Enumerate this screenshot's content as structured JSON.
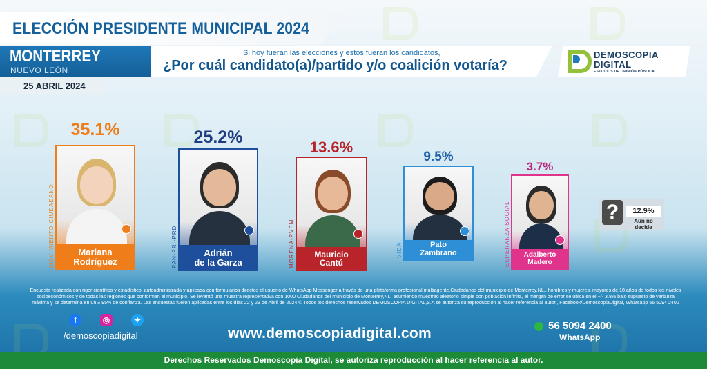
{
  "header": {
    "title": "ELECCIÓN PRESIDENTE MUNICIPAL 2024",
    "city": "MONTERREY",
    "state": "NUEVO LEÓN",
    "date": "25 ABRIL 2024",
    "question_intro": "Si hoy fueran las elecciones y estos fueran los candidatos,",
    "question": "¿Por cuál candidato(a)/partido y/o coalición votaría?"
  },
  "logo": {
    "line1": "DEMOSCOPIA",
    "line2": "DIGITAL",
    "tagline": "ESTUDIOS DE OPINIÓN PÚBLICA"
  },
  "chart_data": {
    "type": "bar",
    "categories": [
      "Mariana Rodríguez",
      "Adrián de la Garza",
      "Mauricio Cantú",
      "Pato Zambrano",
      "Adalberto Madero"
    ],
    "values": [
      35.1,
      25.2,
      13.6,
      9.5,
      3.7
    ],
    "value_labels": [
      "35.1%",
      "25.2%",
      "13.6%",
      "9.5%",
      "3.7%"
    ],
    "undecided": {
      "value": 12.9,
      "label": "12.9%",
      "caption": "Aún no decide"
    }
  },
  "candidates": [
    {
      "name_line1": "Mariana",
      "name_line2": "Rodríguez",
      "party": "MOVIMIENTO CIUDADANO",
      "color": "#ef7d1a",
      "pct_color": "#ef7d1a"
    },
    {
      "name_line1": "Adrián",
      "name_line2": "de la Garza",
      "party": "PAN-PRI-PRD",
      "color": "#1d4f9c",
      "pct_color": "#1d3d80"
    },
    {
      "name_line1": "Mauricio",
      "name_line2": "Cantú",
      "party": "MORENA-PVEM",
      "color": "#b8242a",
      "pct_color": "#b8242a"
    },
    {
      "name_line1": "Pato",
      "name_line2": "Zambrano",
      "party": "VIDA",
      "color": "#2f8fd6",
      "pct_color": "#1d5fa8"
    },
    {
      "name_line1": "Adalberto",
      "name_line2": "Madero",
      "party": "ESPERANZA SOCIAL",
      "color": "#e0338b",
      "pct_color": "#b8247a"
    }
  ],
  "footer": {
    "disclaimer": "Encuesta realizada con rigor científico y estadístico, autoadministrada y aplicada con formularios directos al usuario de WhatsApp Messenger a través de una plataforma profesional multiagente.Ciudadanos del municipio de Monterrey,NL., hombres y mujeres, mayores de 18 años de todos los niveles socioeconómicos y de todas las regiones que conforman el municipio. Se levantó una muestra representativa con 1000 Ciudadanos del municipio de Monterrey,NL. asumiendo muestreo aleatorio simple con población infinita, el margen de error se ubica en el +/- 3.8% bajo supuesto de varianza máxima y se determina en un ± 95% de confianza. Las encuestas fueron aplicadas entre los días 22 y 23 de Abril de 2024.© Todos los derechos reservados DEMOSCOPIA DIGITAL,S.A se autoriza su reproducción al hacer referencia al autor., Facebook/DemoscopiaDigital, Whatsapp 56 5094 2400",
    "social_handle": "/demoscopiadigital",
    "website": "www.demoscopiadigital.com",
    "whatsapp_number": "56 5094 2400",
    "whatsapp_label": "WhatsApp",
    "rights": "Derechos Reservados Demoscopia Digital, se autoriza reproducción al hacer referencia al autor."
  },
  "colors": {
    "title_blue": "#15609a",
    "footer_green": "#1c8a37",
    "brand_green": "#93c13d"
  }
}
